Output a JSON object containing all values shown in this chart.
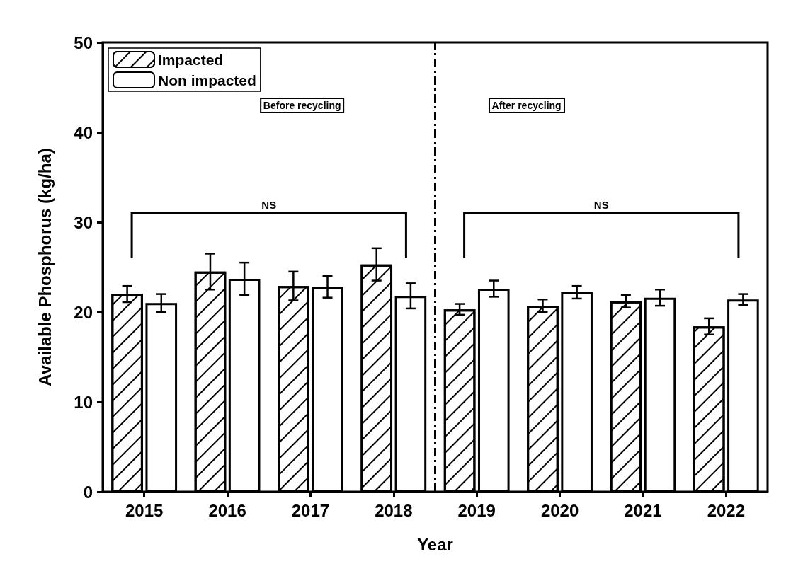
{
  "chart_data": {
    "type": "bar",
    "xlabel": "Year",
    "ylabel": "Available Phosphorus (kg/ha)",
    "x": [
      2015,
      2016,
      2017,
      2018,
      2019,
      2020,
      2021,
      2022
    ],
    "xlim": [
      2014.5,
      2022.5
    ],
    "xticks": [
      2015,
      2016,
      2017,
      2018,
      2019,
      2020,
      2021,
      2022
    ],
    "ylim": [
      0,
      50
    ],
    "yticks": [
      0,
      10,
      20,
      30,
      40,
      50
    ],
    "series": [
      {
        "name": "Impacted",
        "color": "#ffffff",
        "values": [
          22.0,
          24.5,
          22.9,
          25.3,
          20.3,
          20.7,
          21.2,
          18.4
        ],
        "errors": [
          0.9,
          2.0,
          1.6,
          1.8,
          0.6,
          0.7,
          0.7,
          0.9
        ]
      },
      {
        "name": "Non impacted",
        "color": "#ffffff",
        "values": [
          21.0,
          23.7,
          22.8,
          21.8,
          22.6,
          22.2,
          21.6,
          21.4
        ],
        "errors": [
          1.0,
          1.8,
          1.2,
          1.4,
          0.9,
          0.7,
          0.9,
          0.6
        ]
      }
    ],
    "ref_lines": [
      {
        "axis": "x",
        "value": 2018.5,
        "line_style": "dashed",
        "color": "#000000"
      }
    ],
    "annotations": [
      "Before recycling",
      "After recycling",
      "NS",
      "NS"
    ],
    "legend": "top left",
    "grid": false
  }
}
